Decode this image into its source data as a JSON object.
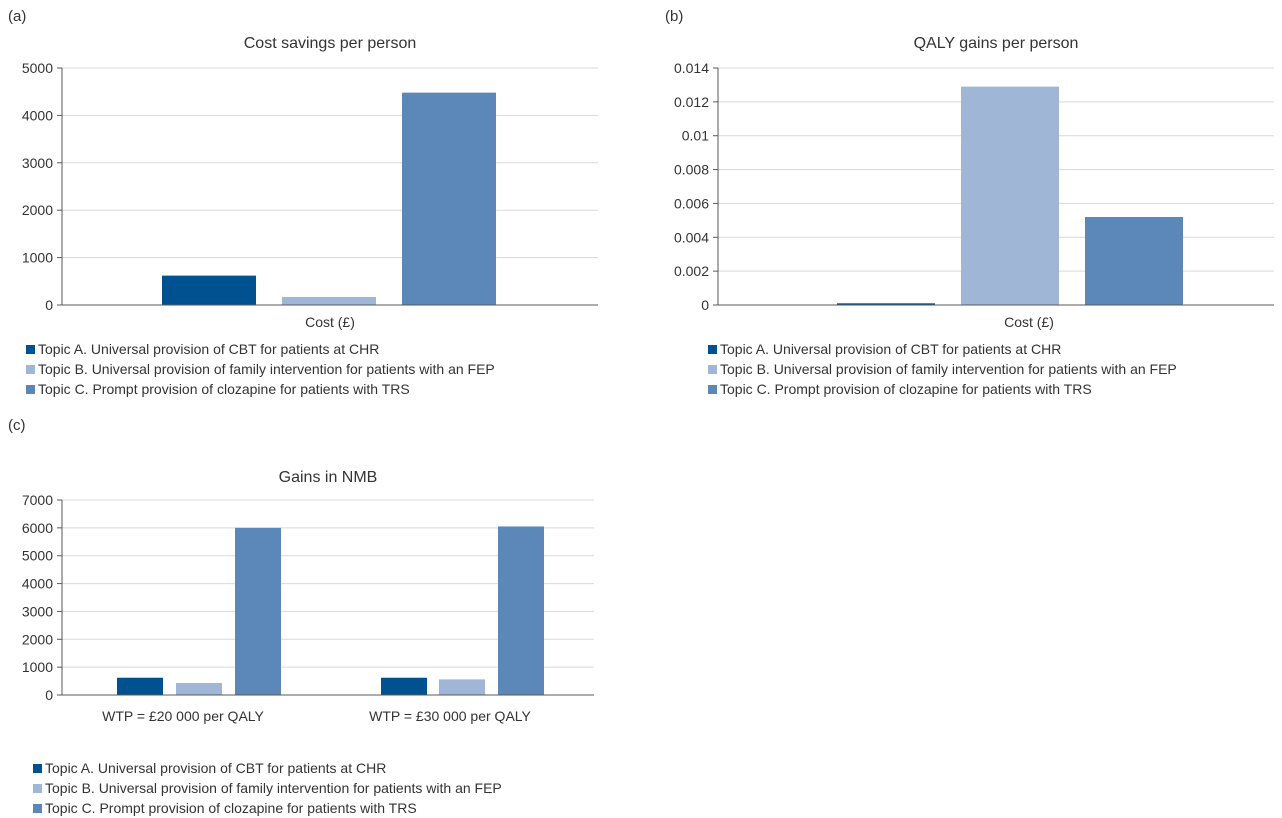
{
  "colors": {
    "topic_a": "#00518f",
    "topic_b": "#a0b6d7",
    "topic_c": "#5b88b9",
    "grid": "#d9d9d9",
    "axis": "#595959"
  },
  "panels": {
    "a": {
      "label": "(a)"
    },
    "b": {
      "label": "(b)"
    },
    "c": {
      "label": "(c)"
    }
  },
  "legend": {
    "topic_a": "Topic A. Universal provision of CBT for patients at CHR",
    "topic_b": "Topic B. Universal provision of family intervention for patients with an FEP",
    "topic_c": "Topic C. Prompt provision of clozapine for patients with TRS"
  },
  "chart_data": [
    {
      "type": "bar",
      "title": "Cost savings per person",
      "categories": [
        "Cost (£)"
      ],
      "series": [
        {
          "name": "Topic A. Universal provision of CBT for patients at CHR",
          "values": [
            620
          ]
        },
        {
          "name": "Topic B. Universal provision of family intervention for patients with an FEP",
          "values": [
            170
          ]
        },
        {
          "name": "Topic C. Prompt provision of clozapine for patients with TRS",
          "values": [
            4480
          ]
        }
      ],
      "ylim": [
        0,
        5000
      ],
      "yticks": [
        "0",
        "1000",
        "2000",
        "3000",
        "4000",
        "5000"
      ],
      "grid": true,
      "legend_position": "bottom-left"
    },
    {
      "type": "bar",
      "title": "QALY gains per person",
      "categories": [
        "Cost (£)"
      ],
      "series": [
        {
          "name": "Topic A. Universal provision of CBT for patients at CHR",
          "values": [
            0.0001
          ]
        },
        {
          "name": "Topic B. Universal provision of family intervention for patients with an FEP",
          "values": [
            0.0129
          ]
        },
        {
          "name": "Topic C. Prompt provision of clozapine for patients with TRS",
          "values": [
            0.0052
          ]
        }
      ],
      "ylim": [
        0,
        0.014
      ],
      "yticks": [
        "0",
        "0.002",
        "0.004",
        "0.006",
        "0.008",
        "0.01",
        "0.012",
        "0.014"
      ],
      "grid": true,
      "legend_position": "bottom-left"
    },
    {
      "type": "bar",
      "title": "Gains in NMB",
      "categories": [
        "WTP = £20 000 per QALY",
        "WTP = £30 000 per QALY"
      ],
      "series": [
        {
          "name": "Topic A. Universal provision of CBT for patients at CHR",
          "values": [
            620,
            620
          ]
        },
        {
          "name": "Topic B. Universal provision of family intervention for patients with an FEP",
          "values": [
            430,
            560
          ]
        },
        {
          "name": "Topic C. Prompt provision of clozapine for patients with TRS",
          "values": [
            6000,
            6050
          ]
        }
      ],
      "ylim": [
        0,
        7000
      ],
      "yticks": [
        "0",
        "1000",
        "2000",
        "3000",
        "4000",
        "5000",
        "6000",
        "7000"
      ],
      "grid": true,
      "legend_position": "bottom-left"
    }
  ]
}
